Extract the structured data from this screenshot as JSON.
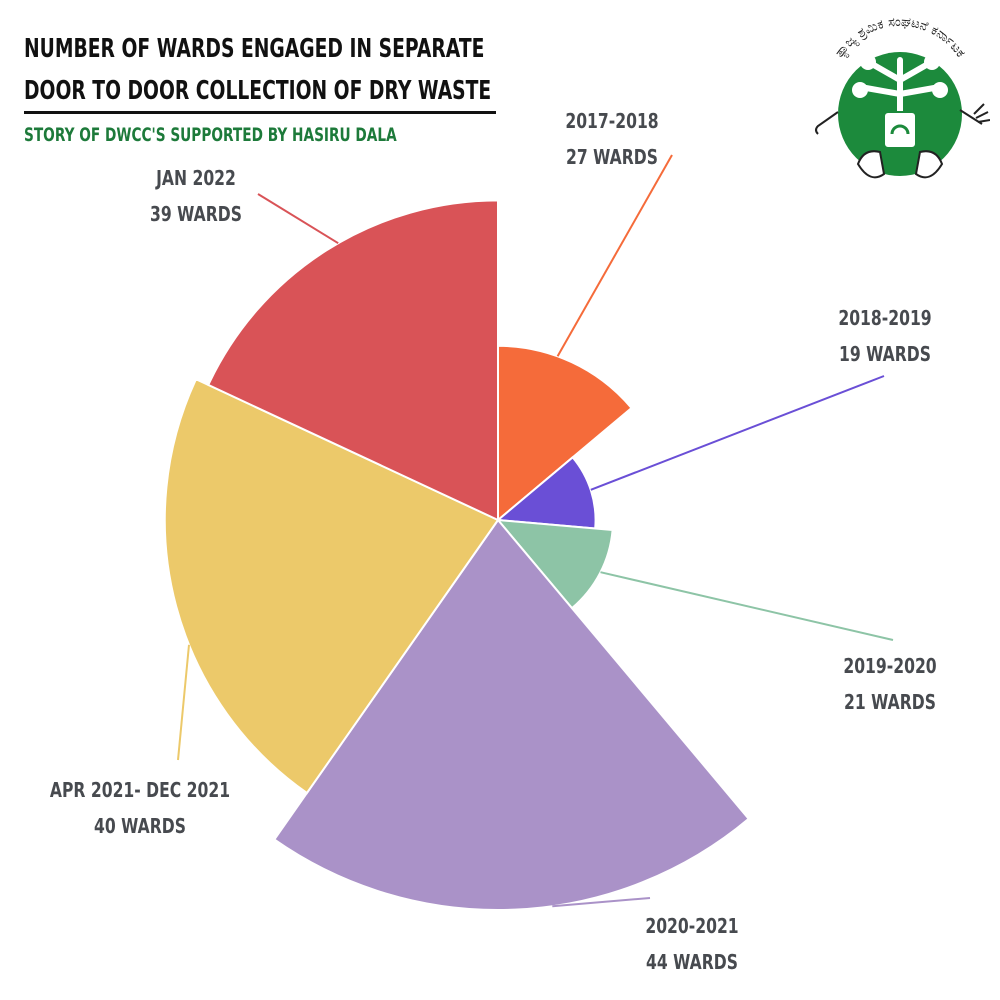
{
  "header": {
    "title_line1": "NUMBER OF WARDS ENGAGED IN SEPARATE",
    "title_line2": "DOOR TO DOOR COLLECTION OF DRY WASTE",
    "subtitle": "STORY OF DWCC'S SUPPORTED BY HASIRU DALA"
  },
  "logo": {
    "arc_text": "ತ್ಯಾಜ್ಯ ಶ್ರಮಿಕ ಸಂಘಟನೆ ಕರ್ನಾಟಕ",
    "ring_color": "#1c8a3c",
    "icon": "recycle-bin-hands-logo"
  },
  "chart_data": {
    "type": "pie",
    "variant": "polar-area",
    "categories": [
      "2017-2018",
      "2018-2019",
      "2019-2020",
      "2020-2021",
      "APR 2021- DEC 2021",
      "JAN 2022"
    ],
    "values": [
      27,
      19,
      21,
      44,
      40,
      39
    ],
    "value_labels": [
      "27 WARDS",
      "19 WARDS",
      "21 WARDS",
      "44 WARDS",
      "40 WARDS",
      "39 WARDS"
    ],
    "colors": [
      "#f56b3a",
      "#6a4fd6",
      "#8dc4a6",
      "#aa92c8",
      "#ecc96a",
      "#d95357"
    ],
    "legend": "none",
    "grid": false
  }
}
